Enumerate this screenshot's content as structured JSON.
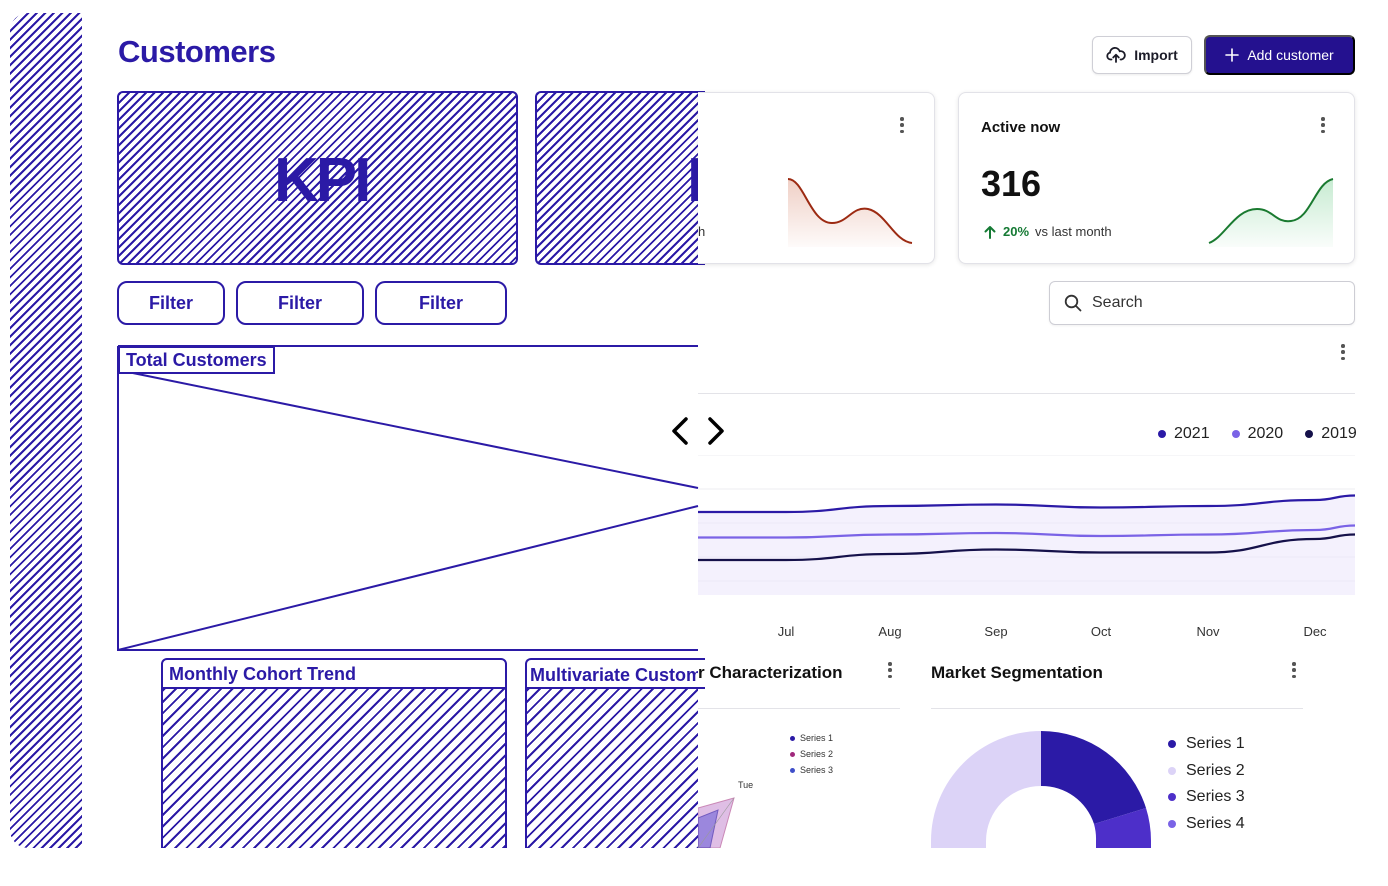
{
  "header": {
    "title": "Customers",
    "import_label": "Import",
    "add_customer_label": "Add customer"
  },
  "wireframe": {
    "kpi_label": "KPI",
    "kpi_label_partial": "K",
    "filters": [
      "Filter",
      "Filter",
      "Filter"
    ],
    "total_customers_label": "Total Customers",
    "monthly_cohort_label": "Monthly Cohort Trend",
    "multivariate_label": "Multivariate Customer Characterization"
  },
  "kpi_cards": [
    {
      "partial_text": "h",
      "trend": "down"
    },
    {
      "title": "Active now",
      "value": "316",
      "delta_pct": "20%",
      "delta_text": "vs last month",
      "trend": "up"
    }
  ],
  "search": {
    "placeholder": "Search"
  },
  "main_chart": {
    "legend": [
      {
        "name": "2021",
        "color": "#2b1aa6"
      },
      {
        "name": "2020",
        "color": "#7a63e6"
      },
      {
        "name": "2019",
        "color": "#15114a"
      }
    ],
    "months": [
      "Jul",
      "Aug",
      "Sep",
      "Oct",
      "Nov",
      "Dec"
    ]
  },
  "multivariate": {
    "title_visible": "r Characterization",
    "series": [
      "Series 1",
      "Series 2",
      "Series 3"
    ],
    "axis_label": "Tue"
  },
  "segmentation": {
    "title": "Market Segmentation",
    "series": [
      {
        "name": "Series 1",
        "color": "#2b1aa6"
      },
      {
        "name": "Series 2",
        "color": "#dcd3f7"
      },
      {
        "name": "Series 3",
        "color": "#4d2fc9"
      },
      {
        "name": "Series 4",
        "color": "#7a63e6"
      }
    ]
  },
  "chart_data": {
    "type": "line",
    "title": "",
    "x": [
      "Jul",
      "Aug",
      "Sep",
      "Oct",
      "Nov",
      "Dec"
    ],
    "series": [
      {
        "name": "2021",
        "values": [
          50,
          54,
          55,
          53,
          54,
          58
        ]
      },
      {
        "name": "2020",
        "values": [
          33,
          35,
          36,
          34,
          35,
          38
        ]
      },
      {
        "name": "2019",
        "values": [
          18,
          22,
          25,
          23,
          23,
          32
        ]
      }
    ],
    "legend_position": "top-right",
    "grid": true
  }
}
